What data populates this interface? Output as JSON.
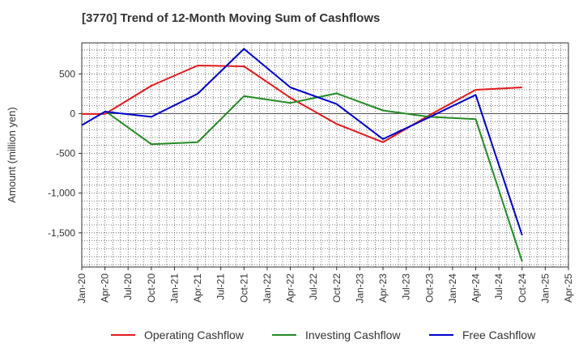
{
  "chart_data": {
    "type": "line",
    "title": "[3770]  Trend of 12-Month Moving Sum of Cashflows",
    "ylabel": "Amount (million yen)",
    "xlabel": "",
    "x_ticks": [
      "Jan-20",
      "Apr-20",
      "Jul-20",
      "Oct-20",
      "Jan-21",
      "Apr-21",
      "Jul-21",
      "Oct-21",
      "Jan-22",
      "Apr-22",
      "Jul-22",
      "Oct-22",
      "Jan-23",
      "Apr-23",
      "Jul-23",
      "Oct-23",
      "Jan-24",
      "Apr-24",
      "Jul-24",
      "Oct-24",
      "Jan-25",
      "Apr-25"
    ],
    "y_ticks": [
      500,
      0,
      -500,
      -1000,
      -1500
    ],
    "y_tick_labels": [
      "500",
      "0",
      "-500",
      "-1,000",
      "-1,500"
    ],
    "ylim": [
      -1930,
      890
    ],
    "grid": true,
    "legend_position": "bottom",
    "series": [
      {
        "name": "Operating Cashflow",
        "color": "#e31a1c",
        "x": [
          "Jan-20",
          "Apr-20",
          "Oct-20",
          "Apr-21",
          "Oct-21",
          "Apr-22",
          "Oct-22",
          "Apr-23",
          "Oct-23",
          "Apr-24",
          "Oct-24"
        ],
        "values": [
          -5,
          -5,
          350,
          605,
          595,
          200,
          -130,
          -360,
          -20,
          300,
          330
        ]
      },
      {
        "name": "Investing Cashflow",
        "color": "#238b23",
        "x": [
          "Apr-20",
          "Oct-20",
          "Apr-21",
          "Oct-21",
          "Apr-22",
          "Oct-22",
          "Apr-23",
          "Oct-23",
          "Apr-24",
          "Oct-24"
        ],
        "values": [
          35,
          -385,
          -360,
          220,
          135,
          255,
          40,
          -40,
          -70,
          -1860
        ]
      },
      {
        "name": "Free Cashflow",
        "color": "#0000cc",
        "x": [
          "Jan-20",
          "Apr-20",
          "Oct-20",
          "Apr-21",
          "Oct-21",
          "Apr-22",
          "Oct-22",
          "Apr-23",
          "Oct-23",
          "Apr-24",
          "Oct-24"
        ],
        "values": [
          -145,
          25,
          -40,
          250,
          815,
          330,
          120,
          -320,
          -45,
          235,
          -1530
        ]
      }
    ]
  }
}
